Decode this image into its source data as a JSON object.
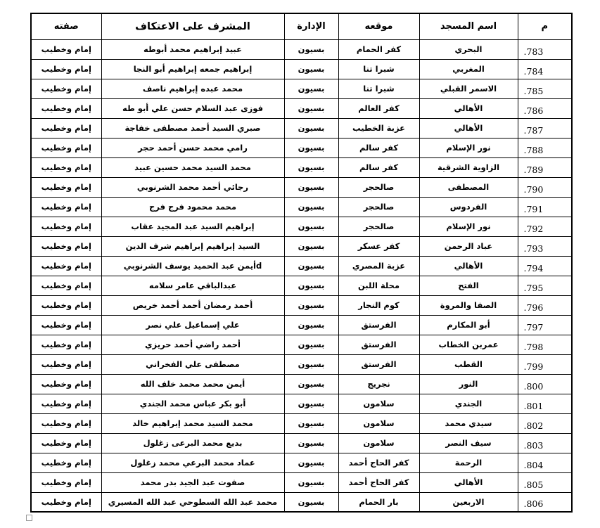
{
  "table": {
    "headers": {
      "no": "م",
      "mosque": "اسم المسجد",
      "location": "موقعه",
      "admin": "الإدارة",
      "supervisor": "المشرف على الاعتكاف",
      "title": "صفته"
    },
    "rows": [
      {
        "no": "783.",
        "mosque": "البحري",
        "location": "كفر الحمام",
        "admin": "بسيون",
        "supervisor": "عبيد إبراهيم محمد أبوطه",
        "title": "إمام وخطيب"
      },
      {
        "no": "784.",
        "mosque": "المغربي",
        "location": "شبرا تنا",
        "admin": "بسيون",
        "supervisor": "إبراهيم جمعه إبراهيم أبو النجا",
        "title": "إمام وخطيب"
      },
      {
        "no": "785.",
        "mosque": "الاسمر القبلي",
        "location": "شبرا تنا",
        "admin": "بسيون",
        "supervisor": "محمد عبده إبراهيم ناصف",
        "title": "إمام وخطيب"
      },
      {
        "no": "786.",
        "mosque": "الأهالي",
        "location": "كفر العالم",
        "admin": "بسيون",
        "supervisor": "فوزى عبد السلام حسن علي أبو طه",
        "title": "إمام وخطيب"
      },
      {
        "no": "787.",
        "mosque": "الأهالي",
        "location": "عزبة الخطيب",
        "admin": "بسيون",
        "supervisor": "صبري السيد أحمد مصطفى خفاجة",
        "title": "إمام وخطيب"
      },
      {
        "no": "788.",
        "mosque": "نور الإسلام",
        "location": "كفر سالم",
        "admin": "بسيون",
        "supervisor": "رامي محمد حسن أحمد حجر",
        "title": "إمام وخطيب"
      },
      {
        "no": "789.",
        "mosque": "الزاوية الشرقية",
        "location": "كفر سالم",
        "admin": "بسيون",
        "supervisor": "محمد السيد محمد حسين عبيد",
        "title": "إمام وخطيب"
      },
      {
        "no": "790.",
        "mosque": "المصطفى",
        "location": "صالحجر",
        "admin": "بسيون",
        "supervisor": "رجائي أحمد محمد الشرنوبي",
        "title": "إمام وخطيب"
      },
      {
        "no": "791.",
        "mosque": "الفردوس",
        "location": "صالحجر",
        "admin": "بسيون",
        "supervisor": "محمد محمود فرج فرج",
        "title": "إمام وخطيب"
      },
      {
        "no": "792.",
        "mosque": "نور الإسلام",
        "location": "صالحجر",
        "admin": "بسيون",
        "supervisor": "إبراهيم السيد عبد المجيد عقاب",
        "title": "إمام وخطيب"
      },
      {
        "no": "793.",
        "mosque": "عباد الرحمن",
        "location": "كفر عسكر",
        "admin": "بسيون",
        "supervisor": "السيد إبراهيم إبراهيم شرف الدين",
        "title": "إمام وخطيب"
      },
      {
        "no": "794.",
        "mosque": "الأهالي",
        "location": "عزبة المصري",
        "admin": "بسيون",
        "supervisor": "dأيمن عبد الحميد يوسف الشرنوبي",
        "title": "إمام وخطيب"
      },
      {
        "no": "795.",
        "mosque": "الفتح",
        "location": "محلة اللبن",
        "admin": "بسيون",
        "supervisor": "عبدالباقي عامر سلامه",
        "title": "إمام وخطيب"
      },
      {
        "no": "796.",
        "mosque": "الصفا والمروة",
        "location": "كوم النجار",
        "admin": "بسيون",
        "supervisor": "أحمد رمضان أحمد أحمد خريص",
        "title": "إمام وخطيب"
      },
      {
        "no": "797.",
        "mosque": "أبو المكارم",
        "location": "الفرستق",
        "admin": "بسيون",
        "supervisor": "علي إسماعيل علي نصر",
        "title": "إمام وخطيب"
      },
      {
        "no": "798.",
        "mosque": "عمربن الخطاب",
        "location": "الفرستق",
        "admin": "بسيون",
        "supervisor": "أحمد راضي أحمد حريزي",
        "title": "إمام وخطيب"
      },
      {
        "no": "799.",
        "mosque": "القطب",
        "location": "الفرستق",
        "admin": "بسيون",
        "supervisor": "مصطفى علي الفخراني",
        "title": "إمام وخطيب"
      },
      {
        "no": "800.",
        "mosque": "النور",
        "location": "نجريج",
        "admin": "بسيون",
        "supervisor": "أيمن محمد محمد خلف الله",
        "title": "إمام وخطيب"
      },
      {
        "no": "801.",
        "mosque": "الجندي",
        "location": "سلامون",
        "admin": "بسيون",
        "supervisor": "أبو بكر عباس محمد الجندي",
        "title": "إمام وخطيب"
      },
      {
        "no": "802.",
        "mosque": "سيدي محمد",
        "location": "سلامون",
        "admin": "بسيون",
        "supervisor": "محمد السيد محمد إبراهيم خالد",
        "title": "إمام وخطيب"
      },
      {
        "no": "803.",
        "mosque": "سيف النصر",
        "location": "سلامون",
        "admin": "بسيون",
        "supervisor": "بديع محمد البرعى زغلول",
        "title": "إمام وخطيب"
      },
      {
        "no": "804.",
        "mosque": "الرحمة",
        "location": "كفر الحاج أحمد",
        "admin": "بسيون",
        "supervisor": "عماد محمد البرعي محمد زغلول",
        "title": "إمام وخطيب"
      },
      {
        "no": "805.",
        "mosque": "الأهالي",
        "location": "كفر الحاج أحمد",
        "admin": "بسيون",
        "supervisor": "صفوت عبد الجيد بدر محمد",
        "title": "إمام وخطيب"
      },
      {
        "no": "806.",
        "mosque": "الاربعين",
        "location": "بار الحمام",
        "admin": "بسيون",
        "supervisor": "محمد عبد الله السطوحي عبد الله المسيري",
        "title": "إمام وخطيب"
      }
    ]
  }
}
